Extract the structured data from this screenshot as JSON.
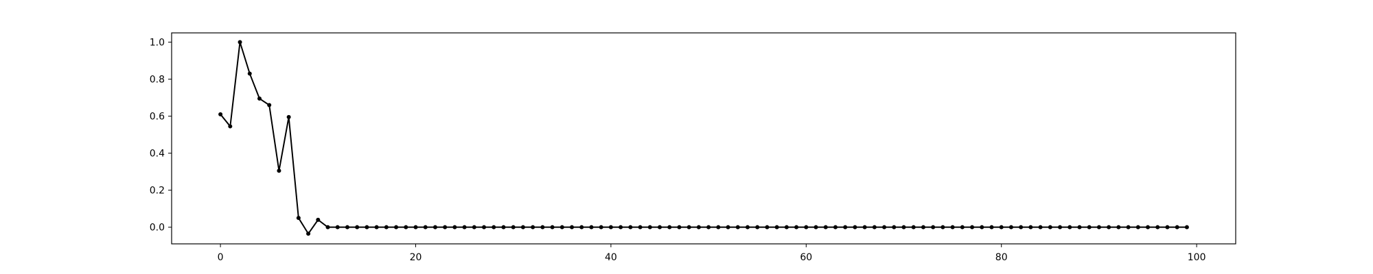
{
  "chart_data": {
    "type": "line",
    "title": "",
    "xlabel": "",
    "ylabel": "",
    "xlim": [
      -5,
      104
    ],
    "ylim": [
      -0.09,
      1.05
    ],
    "grid": false,
    "line_color": "#000000",
    "marker": "dot",
    "x_ticks": [
      {
        "value": 0,
        "label": "0"
      },
      {
        "value": 20,
        "label": "20"
      },
      {
        "value": 40,
        "label": "40"
      },
      {
        "value": 60,
        "label": "60"
      },
      {
        "value": 80,
        "label": "80"
      },
      {
        "value": 100,
        "label": "100"
      }
    ],
    "y_ticks": [
      {
        "value": 0.0,
        "label": "0.0"
      },
      {
        "value": 0.2,
        "label": "0.2"
      },
      {
        "value": 0.4,
        "label": "0.4"
      },
      {
        "value": 0.6,
        "label": "0.6"
      },
      {
        "value": 0.8,
        "label": "0.8"
      },
      {
        "value": 1.0,
        "label": "1.0"
      }
    ],
    "series": [
      {
        "x": [
          0,
          1,
          2,
          3,
          4,
          5,
          6,
          7,
          8,
          9,
          10,
          11,
          12,
          13,
          14,
          15,
          16,
          17,
          18,
          19,
          20,
          21,
          22,
          23,
          24,
          25,
          26,
          27,
          28,
          29,
          30,
          31,
          32,
          33,
          34,
          35,
          36,
          37,
          38,
          39,
          40,
          41,
          42,
          43,
          44,
          45,
          46,
          47,
          48,
          49,
          50,
          51,
          52,
          53,
          54,
          55,
          56,
          57,
          58,
          59,
          60,
          61,
          62,
          63,
          64,
          65,
          66,
          67,
          68,
          69,
          70,
          71,
          72,
          73,
          74,
          75,
          76,
          77,
          78,
          79,
          80,
          81,
          82,
          83,
          84,
          85,
          86,
          87,
          88,
          89,
          90,
          91,
          92,
          93,
          94,
          95,
          96,
          97,
          98,
          99
        ],
        "y": [
          0.61,
          0.545,
          1.0,
          0.83,
          0.695,
          0.66,
          0.305,
          0.595,
          0.05,
          -0.035,
          0.04,
          0.0,
          0,
          0,
          0,
          0,
          0,
          0,
          0,
          0,
          0,
          0,
          0,
          0,
          0,
          0,
          0,
          0,
          0,
          0,
          0,
          0,
          0,
          0,
          0,
          0,
          0,
          0,
          0,
          0,
          0,
          0,
          0,
          0,
          0,
          0,
          0,
          0,
          0,
          0,
          0,
          0,
          0,
          0,
          0,
          0,
          0,
          0,
          0,
          0,
          0,
          0,
          0,
          0,
          0,
          0,
          0,
          0,
          0,
          0,
          0,
          0,
          0,
          0,
          0,
          0,
          0,
          0,
          0,
          0,
          0,
          0,
          0,
          0,
          0,
          0,
          0,
          0,
          0,
          0,
          0,
          0,
          0,
          0,
          0,
          0,
          0,
          0,
          0,
          0
        ]
      }
    ]
  }
}
